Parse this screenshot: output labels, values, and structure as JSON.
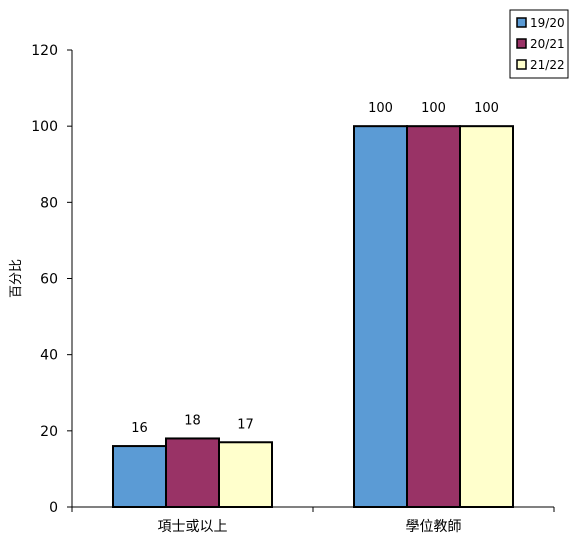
{
  "chart_data": {
    "type": "bar",
    "title": "",
    "xlabel": "",
    "ylabel": "百分比",
    "categories": [
      "項士或以上",
      "學位教師"
    ],
    "series": [
      {
        "name": "19/20",
        "color": "#5b9bd5",
        "values": [
          16,
          100
        ]
      },
      {
        "name": "20/21",
        "color": "#993366",
        "values": [
          18,
          100
        ]
      },
      {
        "name": "21/22",
        "color": "#ffffcc",
        "values": [
          17,
          100
        ]
      }
    ],
    "ylim": [
      0,
      120
    ],
    "yticks": [
      0,
      20,
      40,
      60,
      80,
      100,
      120
    ],
    "grid": false,
    "legend_position": "top-right",
    "data_labels": true
  }
}
